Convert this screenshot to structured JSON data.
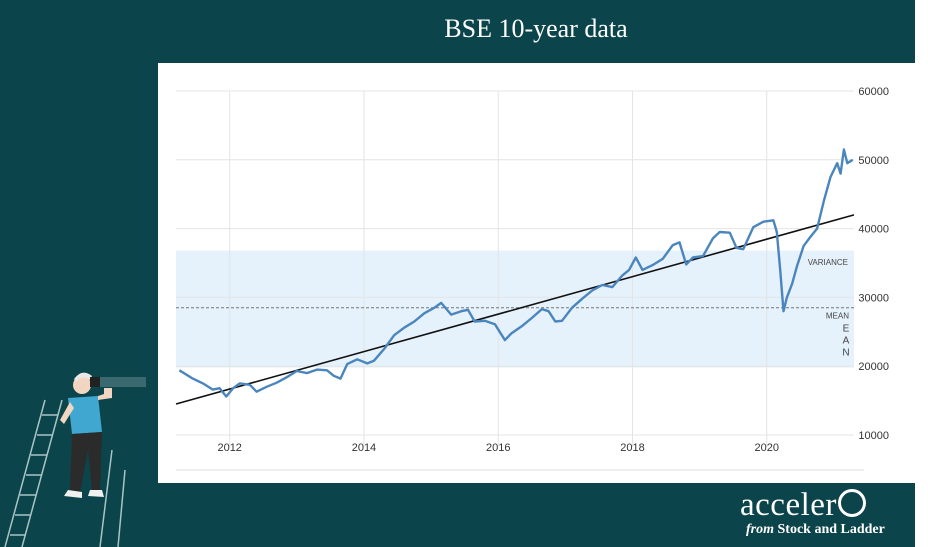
{
  "slide": {
    "title": "BSE 10-year data",
    "background_color": "#0b444a",
    "logo": {
      "main": "acceler",
      "from": "from",
      "sub": "Stock and Ladder"
    }
  },
  "chart_data": {
    "type": "line",
    "title": "BSE 10-year data",
    "xlabel": "",
    "ylabel": "",
    "x_ticks": [
      "2012",
      "2014",
      "2016",
      "2018",
      "2020"
    ],
    "y_ticks": [
      "60000",
      "50000",
      "40000",
      "30000",
      "20000",
      "10000"
    ],
    "xlim": [
      2011.2,
      2021.3
    ],
    "ylim": [
      10000,
      60000
    ],
    "grid": true,
    "series": [
      {
        "color": "#4a86bd",
        "points": [
          [
            2011.25,
            19400
          ],
          [
            2011.45,
            18200
          ],
          [
            2011.6,
            17500
          ],
          [
            2011.75,
            16600
          ],
          [
            2011.85,
            16800
          ],
          [
            2011.95,
            15600
          ],
          [
            2012.05,
            16800
          ],
          [
            2012.15,
            17500
          ],
          [
            2012.3,
            17300
          ],
          [
            2012.4,
            16300
          ],
          [
            2012.55,
            17000
          ],
          [
            2012.7,
            17600
          ],
          [
            2012.85,
            18400
          ],
          [
            2013.0,
            19300
          ],
          [
            2013.15,
            19000
          ],
          [
            2013.3,
            19500
          ],
          [
            2013.45,
            19400
          ],
          [
            2013.55,
            18600
          ],
          [
            2013.65,
            18200
          ],
          [
            2013.75,
            20300
          ],
          [
            2013.9,
            21000
          ],
          [
            2014.05,
            20400
          ],
          [
            2014.15,
            20800
          ],
          [
            2014.3,
            22500
          ],
          [
            2014.45,
            24500
          ],
          [
            2014.6,
            25600
          ],
          [
            2014.75,
            26500
          ],
          [
            2014.9,
            27700
          ],
          [
            2015.05,
            28500
          ],
          [
            2015.15,
            29200
          ],
          [
            2015.3,
            27500
          ],
          [
            2015.45,
            28000
          ],
          [
            2015.55,
            28200
          ],
          [
            2015.65,
            26500
          ],
          [
            2015.8,
            26600
          ],
          [
            2015.95,
            26100
          ],
          [
            2016.1,
            23800
          ],
          [
            2016.2,
            24800
          ],
          [
            2016.35,
            25800
          ],
          [
            2016.5,
            27000
          ],
          [
            2016.65,
            28300
          ],
          [
            2016.75,
            28000
          ],
          [
            2016.85,
            26500
          ],
          [
            2016.95,
            26600
          ],
          [
            2017.1,
            28500
          ],
          [
            2017.25,
            29800
          ],
          [
            2017.4,
            31000
          ],
          [
            2017.55,
            31800
          ],
          [
            2017.7,
            31500
          ],
          [
            2017.85,
            33200
          ],
          [
            2017.95,
            34000
          ],
          [
            2018.05,
            35800
          ],
          [
            2018.15,
            34000
          ],
          [
            2018.3,
            34700
          ],
          [
            2018.45,
            35600
          ],
          [
            2018.6,
            37600
          ],
          [
            2018.7,
            38000
          ],
          [
            2018.8,
            34800
          ],
          [
            2018.9,
            35800
          ],
          [
            2019.05,
            36000
          ],
          [
            2019.2,
            38600
          ],
          [
            2019.3,
            39500
          ],
          [
            2019.45,
            39400
          ],
          [
            2019.55,
            37200
          ],
          [
            2019.65,
            37000
          ],
          [
            2019.8,
            40200
          ],
          [
            2019.95,
            41000
          ],
          [
            2020.1,
            41200
          ],
          [
            2020.15,
            39500
          ],
          [
            2020.2,
            34000
          ],
          [
            2020.25,
            28000
          ],
          [
            2020.3,
            30000
          ],
          [
            2020.38,
            32000
          ],
          [
            2020.45,
            34500
          ],
          [
            2020.55,
            37500
          ],
          [
            2020.65,
            38800
          ],
          [
            2020.75,
            40000
          ],
          [
            2020.85,
            44000
          ],
          [
            2020.95,
            47500
          ],
          [
            2021.05,
            49500
          ],
          [
            2021.1,
            48000
          ],
          [
            2021.15,
            51500
          ],
          [
            2021.2,
            49500
          ],
          [
            2021.28,
            50000
          ]
        ]
      }
    ],
    "trendline": {
      "color": "#111111",
      "points": [
        [
          2011.2,
          14500
        ],
        [
          2021.3,
          42000
        ]
      ]
    },
    "variance_band": {
      "color": "#e5f1fb",
      "range": [
        19800,
        36800
      ]
    },
    "mean_line": {
      "value": 28500,
      "color": "#777777"
    },
    "annotations": {
      "variance": "VARIANCE",
      "mean": "MEAN",
      "mean_vertical": [
        "E",
        "A",
        "N"
      ]
    }
  }
}
